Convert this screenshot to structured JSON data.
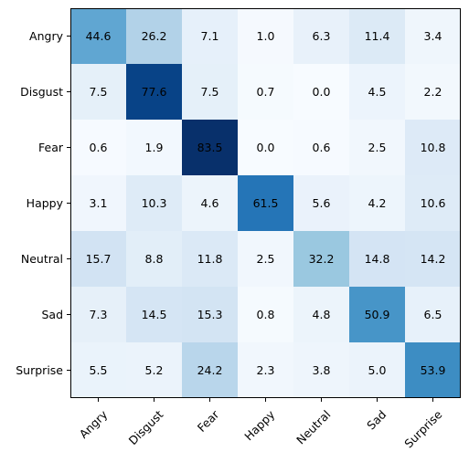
{
  "chart_data": {
    "type": "heatmap",
    "title": "",
    "xlabel": "",
    "ylabel": "",
    "colormap": "Blues",
    "x_categories": [
      "Angry",
      "Disgust",
      "Fear",
      "Happy",
      "Neutral",
      "Sad",
      "Surprise"
    ],
    "y_categories": [
      "Angry",
      "Disgust",
      "Fear",
      "Happy",
      "Neutral",
      "Sad",
      "Surprise"
    ],
    "values": [
      [
        44.6,
        26.2,
        7.1,
        1.0,
        6.3,
        11.4,
        3.4
      ],
      [
        7.5,
        77.6,
        7.5,
        0.7,
        0.0,
        4.5,
        2.2
      ],
      [
        0.6,
        1.9,
        83.5,
        0.0,
        0.6,
        2.5,
        10.8
      ],
      [
        3.1,
        10.3,
        4.6,
        61.5,
        5.6,
        4.2,
        10.6
      ],
      [
        15.7,
        8.8,
        11.8,
        2.5,
        32.2,
        14.8,
        14.2
      ],
      [
        7.3,
        14.5,
        15.3,
        0.8,
        4.8,
        50.9,
        6.5
      ],
      [
        5.5,
        5.2,
        24.2,
        2.3,
        3.8,
        5.0,
        53.9
      ]
    ],
    "value_labels": [
      [
        "44.6",
        "26.2",
        "7.1",
        "1.0",
        "6.3",
        "11.4",
        "3.4"
      ],
      [
        "7.5",
        "77.6",
        "7.5",
        "0.7",
        "0.0",
        "4.5",
        "2.2"
      ],
      [
        "0.6",
        "1.9",
        "83.5",
        "0.0",
        "0.6",
        "2.5",
        "10.8"
      ],
      [
        "3.1",
        "10.3",
        "4.6",
        "61.5",
        "5.6",
        "4.2",
        "10.6"
      ],
      [
        "15.7",
        "8.8",
        "11.8",
        "2.5",
        "32.2",
        "14.8",
        "14.2"
      ],
      [
        "7.3",
        "14.5",
        "15.3",
        "0.8",
        "4.8",
        "50.9",
        "6.5"
      ],
      [
        "5.5",
        "5.2",
        "24.2",
        "2.3",
        "3.8",
        "5.0",
        "53.9"
      ]
    ],
    "vmin": 0.0,
    "vmax": 83.5,
    "grid": false,
    "legend": false
  }
}
